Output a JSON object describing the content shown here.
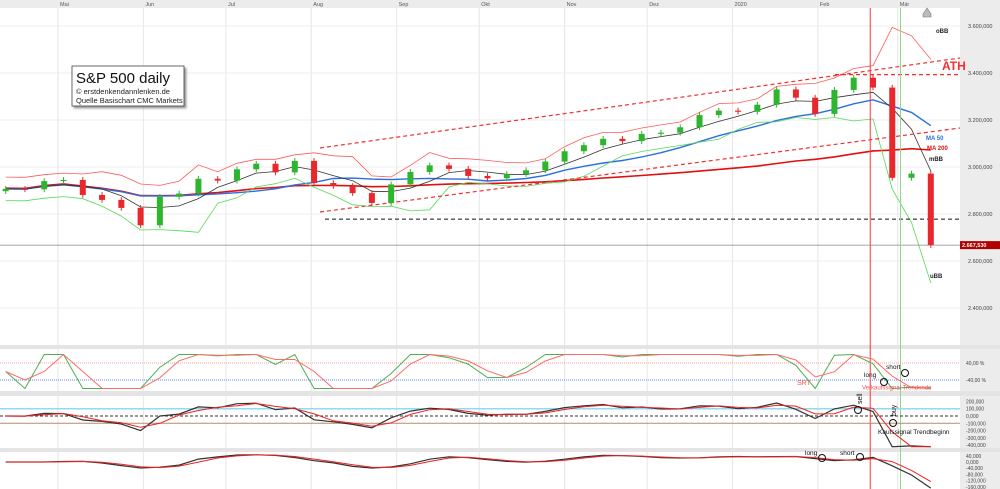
{
  "title_box": {
    "title": "S&P 500 daily",
    "line1": "© erstdenkendannlenken.de",
    "line2": "Quelle Basischart CMC Markets"
  },
  "colors": {
    "up": "#2db52d",
    "down": "#e8282c",
    "ma50": "#2a6fe0",
    "ma200": "#e01010",
    "mbb": "#333333",
    "obb": "#ff5a5a",
    "ubb": "#57d957",
    "price_tag": "#b00000"
  },
  "chart_data": {
    "type": "candlestick",
    "x_axis": {
      "ticks": [
        {
          "date": "2019-05-01",
          "label": "Mai"
        },
        {
          "date": "2019-06-01",
          "label": "Jun"
        },
        {
          "date": "2019-07-01",
          "label": "Jul"
        },
        {
          "date": "2019-08-01",
          "label": "Aug"
        },
        {
          "date": "2019-09-01",
          "label": "Sep"
        },
        {
          "date": "2019-10-01",
          "label": "Okt"
        },
        {
          "date": "2019-11-01",
          "label": "Nov"
        },
        {
          "date": "2019-12-01",
          "label": "Dez"
        },
        {
          "date": "2020-01-01",
          "label": "2020"
        },
        {
          "date": "2020-02-01",
          "label": "Feb"
        },
        {
          "date": "2020-03-01",
          "label": "Mär"
        }
      ]
    },
    "y_axis": {
      "range": [
        2350,
        3680
      ],
      "ticks": [
        {
          "value": 3600,
          "label": "3.600,000"
        },
        {
          "value": 3400,
          "label": "3.400,000"
        },
        {
          "value": 3200,
          "label": "3.200,000"
        },
        {
          "value": 3000,
          "label": "3.000,000"
        },
        {
          "value": 2800,
          "label": "2.800,000"
        },
        {
          "value": 2600,
          "label": "2.600,000"
        },
        {
          "value": 2400,
          "label": "2.400,000"
        }
      ]
    },
    "current_price": {
      "value": 2667.53,
      "label": "2.667,530"
    },
    "series": [
      {
        "date": "2019-04-12",
        "close": 2907
      },
      {
        "date": "2019-04-19",
        "close": 2905
      },
      {
        "date": "2019-04-26",
        "close": 2940
      },
      {
        "date": "2019-05-03",
        "close": 2945
      },
      {
        "date": "2019-05-10",
        "close": 2881
      },
      {
        "date": "2019-05-17",
        "close": 2860
      },
      {
        "date": "2019-05-24",
        "close": 2826
      },
      {
        "date": "2019-05-31",
        "close": 2752
      },
      {
        "date": "2019-06-07",
        "close": 2873
      },
      {
        "date": "2019-06-14",
        "close": 2887
      },
      {
        "date": "2019-06-21",
        "close": 2950
      },
      {
        "date": "2019-06-28",
        "close": 2942
      },
      {
        "date": "2019-07-05",
        "close": 2990
      },
      {
        "date": "2019-07-12",
        "close": 3014
      },
      {
        "date": "2019-07-19",
        "close": 2977
      },
      {
        "date": "2019-07-26",
        "close": 3026
      },
      {
        "date": "2019-08-02",
        "close": 2932
      },
      {
        "date": "2019-08-09",
        "close": 2919
      },
      {
        "date": "2019-08-16",
        "close": 2889
      },
      {
        "date": "2019-08-23",
        "close": 2847
      },
      {
        "date": "2019-08-30",
        "close": 2926
      },
      {
        "date": "2019-09-06",
        "close": 2979
      },
      {
        "date": "2019-09-13",
        "close": 3007
      },
      {
        "date": "2019-09-20",
        "close": 2992
      },
      {
        "date": "2019-09-27",
        "close": 2962
      },
      {
        "date": "2019-10-04",
        "close": 2952
      },
      {
        "date": "2019-10-11",
        "close": 2970
      },
      {
        "date": "2019-10-18",
        "close": 2986
      },
      {
        "date": "2019-10-25",
        "close": 3023
      },
      {
        "date": "2019-11-01",
        "close": 3067
      },
      {
        "date": "2019-11-08",
        "close": 3093
      },
      {
        "date": "2019-11-15",
        "close": 3120
      },
      {
        "date": "2019-11-22",
        "close": 3110
      },
      {
        "date": "2019-11-29",
        "close": 3141
      },
      {
        "date": "2019-12-06",
        "close": 3146
      },
      {
        "date": "2019-12-13",
        "close": 3169
      },
      {
        "date": "2019-12-20",
        "close": 3221
      },
      {
        "date": "2019-12-27",
        "close": 3240
      },
      {
        "date": "2020-01-03",
        "close": 3235
      },
      {
        "date": "2020-01-10",
        "close": 3265
      },
      {
        "date": "2020-01-17",
        "close": 3330
      },
      {
        "date": "2020-01-24",
        "close": 3295
      },
      {
        "date": "2020-01-31",
        "close": 3226
      },
      {
        "date": "2020-02-07",
        "close": 3328
      },
      {
        "date": "2020-02-14",
        "close": 3380
      },
      {
        "date": "2020-02-21",
        "close": 3338
      },
      {
        "date": "2020-02-28",
        "close": 2954
      },
      {
        "date": "2020-03-06",
        "close": 2972
      },
      {
        "date": "2020-03-13",
        "close": 2667.53
      }
    ],
    "levels": {
      "ath": 3393,
      "support": 2778
    },
    "line_labels": {
      "obb": "oBB",
      "ath": "ATH",
      "ma50": "MA 50",
      "ma200": "MA 200",
      "mbb": "mBB",
      "ubb": "uBB"
    },
    "vertical_markers": [
      {
        "date": "2020-02-20",
        "color": "#ff3333"
      },
      {
        "date": "2020-03-02",
        "color": "#8fd48f"
      }
    ],
    "indicators": [
      {
        "ticks": [
          {
            "value": 40,
            "label": "40,00 %"
          },
          {
            "value": -40,
            "label": "-40,00 %"
          }
        ],
        "annotations": {
          "srt": "SRT",
          "long": "long",
          "short": "short",
          "sell_signal": "Verkaufssignal Trendende"
        }
      },
      {
        "ticks": [
          {
            "value": 200,
            "label": "200,000"
          },
          {
            "value": 100,
            "label": "100,000"
          },
          {
            "value": 0,
            "label": "0,000"
          },
          {
            "value": -100,
            "label": "-100,000"
          },
          {
            "value": -200,
            "label": "-200,000"
          },
          {
            "value": -300,
            "label": "-300,000"
          },
          {
            "value": -400,
            "label": "-400,000"
          }
        ],
        "annotations": {
          "sell": "sell",
          "buy": "buy",
          "buy_signal": "Kaufssignal Trendbeginn"
        }
      },
      {
        "ticks": [
          {
            "value": 40,
            "label": "40,000"
          },
          {
            "value": 0,
            "label": "0,000"
          },
          {
            "value": -40,
            "label": "-40,000"
          },
          {
            "value": -80,
            "label": "-80,000"
          },
          {
            "value": -120,
            "label": "-120,000"
          },
          {
            "value": -160,
            "label": "-160,000"
          }
        ],
        "annotations": {
          "long": "long",
          "short": "short"
        }
      }
    ]
  }
}
